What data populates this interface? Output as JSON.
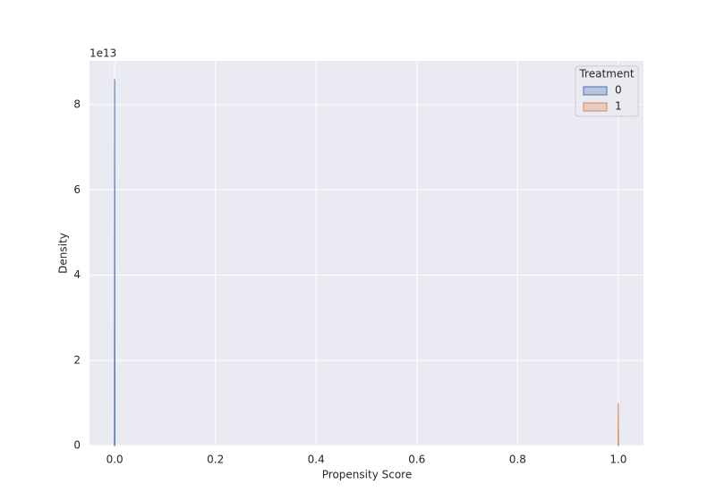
{
  "chart_data": {
    "type": "area",
    "x_label": "Propensity Score",
    "y_label": "Density",
    "y_offset_label": "1e13",
    "legend_title": "Treatment",
    "legend_position": "upper right",
    "grid": true,
    "series": [
      {
        "name": "0",
        "color": "#4c72b0",
        "x": [
          -0.0005,
          0.0,
          0.0005
        ],
        "values": [
          0,
          86000000000000,
          0
        ]
      },
      {
        "name": "1",
        "color": "#dd8452",
        "x": [
          0.9995,
          1.0,
          1.0005
        ],
        "values": [
          0,
          10000000000000,
          0
        ]
      }
    ],
    "xlim": [
      -0.05,
      1.05
    ],
    "xticks": [
      {
        "value": 0.0,
        "label": "0.0"
      },
      {
        "value": 0.2,
        "label": "0.2"
      },
      {
        "value": 0.4,
        "label": "0.4"
      },
      {
        "value": 0.6,
        "label": "0.6"
      },
      {
        "value": 0.8,
        "label": "0.8"
      },
      {
        "value": 1.0,
        "label": "1.0"
      }
    ],
    "ylim": [
      0,
      90300000000000
    ],
    "yticks": [
      0,
      {
        "value": 20000000000000,
        "label": "2"
      },
      {
        "value": 40000000000000,
        "label": "4"
      },
      {
        "value": 60000000000000,
        "label": "6"
      },
      {
        "value": 80000000000000,
        "label": "8"
      }
    ]
  }
}
